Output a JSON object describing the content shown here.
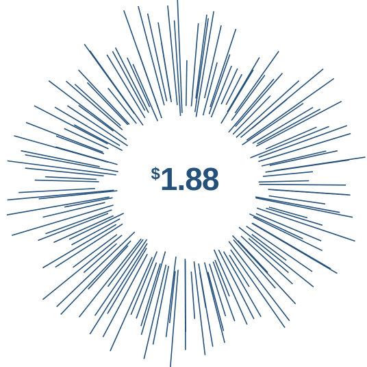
{
  "price": {
    "currency": "$",
    "amount": 1.88
  }
}
